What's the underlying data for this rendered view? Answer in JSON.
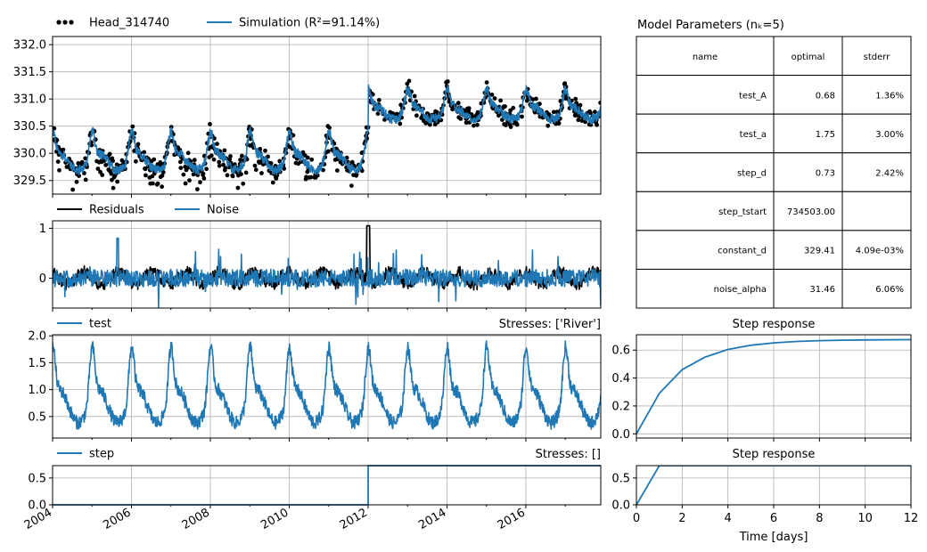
{
  "colors": {
    "obs": "#000000",
    "sim": "#1f77b4",
    "grid": "#b0b0b0",
    "residual": "#000000",
    "noise": "#1f77b4"
  },
  "legends": {
    "head": "Head_314740",
    "simulation": "Simulation (R²=91.14%)",
    "residuals": "Residuals",
    "noise": "Noise",
    "test": "test",
    "step": "step"
  },
  "stress_titles": {
    "test": "Stresses: ['River']",
    "step": "Stresses: []"
  },
  "params_title": "Model Parameters (nₖ=5)",
  "params_table": {
    "headers": [
      "name",
      "optimal",
      "stderr"
    ],
    "rows": [
      [
        "test_A",
        "0.68",
        "1.36%"
      ],
      [
        "test_a",
        "1.75",
        "3.00%"
      ],
      [
        "step_d",
        "0.73",
        "2.42%"
      ],
      [
        "step_tstart",
        "734503.00",
        ""
      ],
      [
        "constant_d",
        "329.41",
        "4.09e-03%"
      ],
      [
        "noise_alpha",
        "31.46",
        "6.06%"
      ]
    ]
  },
  "step_response_title": "Step response",
  "chart_data": [
    {
      "type": "line",
      "panel": "head",
      "x_ticks": [
        "2004",
        "2006",
        "2008",
        "2010",
        "2012",
        "2014",
        "2016"
      ],
      "ylim": [
        329.25,
        332.15
      ],
      "y_ticks": [
        "329.5",
        "330.0",
        "330.5",
        "331.0",
        "331.5",
        "332.0"
      ],
      "series": [
        {
          "name": "Head_314740",
          "kind": "scatter",
          "segments": [
            {
              "x": [
                2004.0,
                2012.0
              ],
              "base": 330.0
            },
            {
              "x": [
                2012.0,
                2017.9
              ],
              "base": 330.75
            }
          ]
        },
        {
          "name": "Simulation (R²=91.14%)",
          "kind": "line",
          "segments": [
            {
              "x": [
                2004.0,
                2012.0
              ],
              "base": 330.0
            },
            {
              "x": [
                2012.0,
                2017.9
              ],
              "base": 330.75
            }
          ]
        }
      ]
    },
    {
      "type": "line",
      "panel": "residuals",
      "x_ticks": [
        "2004",
        "2006",
        "2008",
        "2010",
        "2012",
        "2014",
        "2016"
      ],
      "ylim": [
        -0.6,
        1.15
      ],
      "y_ticks": [
        "0",
        "1"
      ],
      "series": [
        {
          "name": "Residuals",
          "base": 0.0
        },
        {
          "name": "Noise",
          "base": 0.0
        }
      ]
    },
    {
      "type": "line",
      "panel": "test",
      "x_ticks": [
        "2004",
        "2006",
        "2008",
        "2010",
        "2012",
        "2014",
        "2016"
      ],
      "ylim": [
        0.1,
        2.02
      ],
      "y_ticks": [
        "0.5",
        "1.0",
        "1.5",
        "2.0"
      ],
      "series": [
        {
          "name": "test",
          "base": 0.6
        }
      ]
    },
    {
      "type": "line",
      "panel": "step",
      "x_ticks": [
        "2004",
        "2006",
        "2008",
        "2010",
        "2012",
        "2014",
        "2016"
      ],
      "ylim": [
        0,
        0.73
      ],
      "y_ticks": [
        "0.0",
        "0.5"
      ],
      "series": [
        {
          "name": "step",
          "x": [
            2004,
            2012,
            2012,
            2017.9
          ],
          "y": [
            0,
            0,
            0.73,
            0.73
          ]
        }
      ]
    },
    {
      "type": "line",
      "panel": "step_response_test",
      "title": "Step response",
      "xlim": [
        0,
        12
      ],
      "ylim": [
        -0.03,
        0.71
      ],
      "y_ticks": [
        "0.0",
        "0.2",
        "0.4",
        "0.6"
      ],
      "series": [
        {
          "name": "test",
          "x": [
            0,
            1,
            2,
            3,
            4,
            5,
            6,
            7,
            8,
            9,
            10,
            11,
            12
          ],
          "y": [
            0.0,
            0.29,
            0.46,
            0.55,
            0.605,
            0.635,
            0.652,
            0.662,
            0.668,
            0.671,
            0.673,
            0.674,
            0.675
          ]
        }
      ]
    },
    {
      "type": "line",
      "panel": "step_response_step",
      "title": "Step response",
      "xlabel": "Time [days]",
      "xlim": [
        0,
        12
      ],
      "ylim": [
        0,
        0.73
      ],
      "x_ticks": [
        "0",
        "2",
        "4",
        "6",
        "8",
        "10",
        "12"
      ],
      "y_ticks": [
        "0.0",
        "0.5"
      ],
      "series": [
        {
          "name": "step",
          "x": [
            0,
            1,
            12
          ],
          "y": [
            0,
            0.73,
            0.73
          ]
        }
      ]
    }
  ]
}
